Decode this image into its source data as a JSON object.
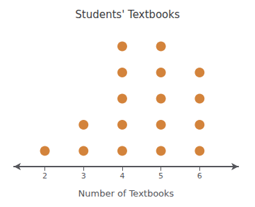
{
  "chart_data": {
    "type": "dot_plot",
    "title": "Students' Textbooks",
    "xlabel": "Number of Textbooks",
    "x": [
      2,
      3,
      4,
      5,
      6
    ],
    "values": [
      1,
      2,
      5,
      5,
      4
    ],
    "color": "#c8640a",
    "xlim": [
      1.2,
      7.0
    ],
    "xticks": [
      2,
      3,
      4,
      5,
      6
    ],
    "grid": false,
    "tick_labels": "x"
  }
}
